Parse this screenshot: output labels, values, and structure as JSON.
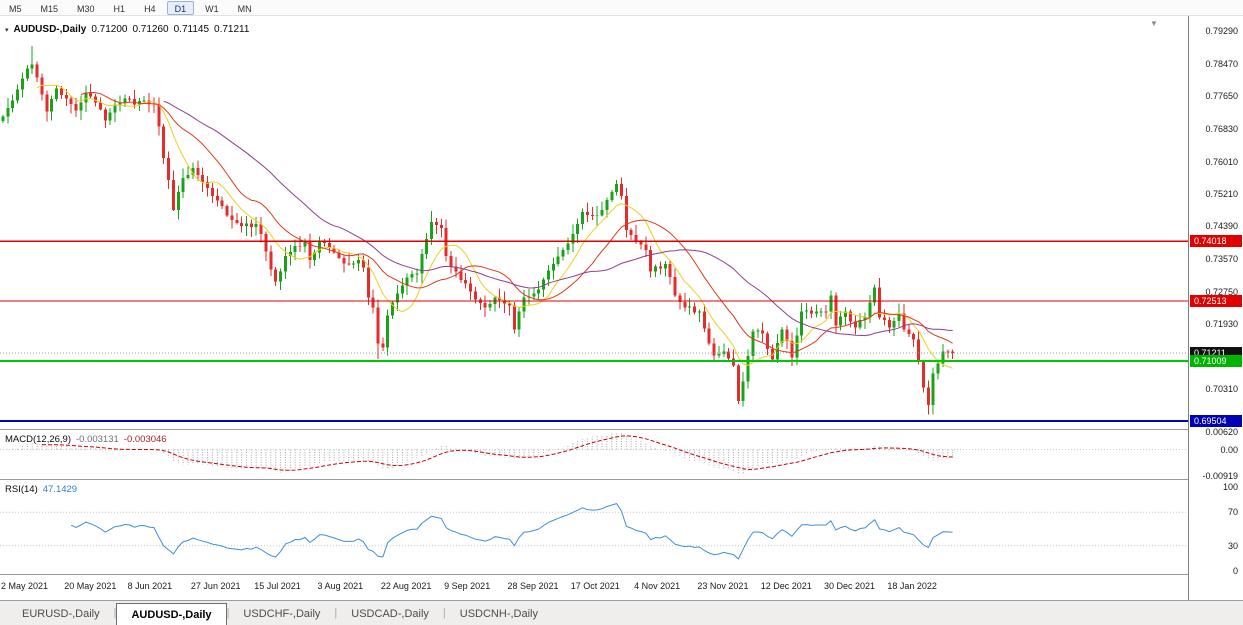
{
  "glyphs": {
    "dropdown": "▾",
    "shift_marker": "▼",
    "tab_separator": "|"
  },
  "toolbar": {
    "timeframes": [
      "M5",
      "M15",
      "M30",
      "H1",
      "H4",
      "D1",
      "W1",
      "MN"
    ],
    "active": "D1"
  },
  "chart": {
    "symbol_header": {
      "symbol": "AUDUSD-,Daily",
      "ohlc": [
        "0.71200",
        "0.71260",
        "0.71145",
        "0.71211"
      ]
    },
    "price_axis": {
      "ticks": [
        {
          "label": "0.79290",
          "value": 0.7929
        },
        {
          "label": "0.78470",
          "value": 0.7847
        },
        {
          "label": "0.77650",
          "value": 0.7765
        },
        {
          "label": "0.76830",
          "value": 0.7683
        },
        {
          "label": "0.76010",
          "value": 0.7601
        },
        {
          "label": "0.75210",
          "value": 0.7521
        },
        {
          "label": "0.74390",
          "value": 0.7439
        },
        {
          "label": "0.73570",
          "value": 0.7357
        },
        {
          "label": "0.72750",
          "value": 0.7275
        },
        {
          "label": "0.71930",
          "value": 0.7193
        },
        {
          "label": "0.70310",
          "value": 0.7031
        }
      ],
      "badges": [
        {
          "label": "0.74018",
          "value": 0.74018,
          "bg": "#e00000",
          "name": "resistance-level-badge"
        },
        {
          "label": "0.72513",
          "value": 0.72513,
          "bg": "#e00000",
          "name": "resistance-level-badge"
        },
        {
          "label": "0.71211",
          "value": 0.71211,
          "bg": "#111111",
          "name": "current-price-badge"
        },
        {
          "label": "0.71009",
          "value": 0.71009,
          "bg": "#00b400",
          "name": "support-level-badge"
        },
        {
          "label": "0.69504",
          "value": 0.69504,
          "bg": "#0000b4",
          "name": "support-level-badge"
        }
      ]
    }
  },
  "indicators": {
    "macd": {
      "label": "MACD(12,26,9)",
      "value": "-0.003131",
      "signal": "-0.003046",
      "ticks": [
        {
          "label": "0.00620",
          "value": 0.0062
        },
        {
          "label": "0.00",
          "value": 0.0
        },
        {
          "label": "-0.00919",
          "value": -0.00919
        }
      ]
    },
    "rsi": {
      "label": "RSI(14)",
      "value": "47.1429",
      "ticks": [
        {
          "label": "100",
          "value": 100
        },
        {
          "label": "70",
          "value": 70
        },
        {
          "label": "30",
          "value": 30
        },
        {
          "label": "0",
          "value": 0
        }
      ]
    }
  },
  "date_axis": {
    "labels": [
      "2 May 2021",
      "20 May 2021",
      "8 Jun 2021",
      "27 Jun 2021",
      "15 Jul 2021",
      "3 Aug 2021",
      "22 Aug 2021",
      "9 Sep 2021",
      "28 Sep 2021",
      "17 Oct 2021",
      "4 Nov 2021",
      "23 Nov 2021",
      "12 Dec 2021",
      "30 Dec 2021",
      "18 Jan 2022"
    ],
    "bars_per_label": 13
  },
  "tabs": [
    {
      "label": "EURUSD-,Daily",
      "active": false
    },
    {
      "label": "AUDUSD-,Daily",
      "active": true
    },
    {
      "label": "USDCHF-,Daily",
      "active": false
    },
    {
      "label": "USDCAD-,Daily",
      "active": false
    },
    {
      "label": "USDCNH-,Daily",
      "active": false
    }
  ],
  "colors": {
    "bull": "#18a318",
    "bear": "#e52b2b",
    "ma_fast": "#efcf1e",
    "ma_mid": "#e0391c",
    "ma_slow": "#8e3e8e",
    "macd_hist": "#a6a6a6",
    "macd_signal": "#cc0000",
    "rsi_line": "#3e8ede",
    "level_red": "#e00000",
    "level_green": "#00c800",
    "level_blue": "#0000b4",
    "separator": "#9a9a9a",
    "grid_dotted": "#c8c8c8",
    "current_price_line": "#9a9a9a"
  },
  "chart_data": [
    {
      "type": "candlestick",
      "title": "AUDUSD-,Daily",
      "bar_count": 196,
      "ylim": [
        0.69278,
        0.79667
      ],
      "current_close": 0.71211,
      "levels": [
        {
          "value": 0.74018,
          "color": "red"
        },
        {
          "value": 0.72513,
          "color": "red"
        },
        {
          "value": 0.71009,
          "color": "green"
        },
        {
          "value": 0.69504,
          "color": "blue"
        }
      ],
      "moving_averages": [
        {
          "period": 8,
          "color_key": "ma_fast"
        },
        {
          "period": 17,
          "color_key": "ma_mid"
        },
        {
          "period": 34,
          "color_key": "ma_slow"
        }
      ],
      "close_keyframes": [
        [
          0,
          0.7715
        ],
        [
          2,
          0.7755
        ],
        [
          4,
          0.781
        ],
        [
          5,
          0.7835
        ],
        [
          6,
          0.7845
        ],
        [
          8,
          0.777
        ],
        [
          9,
          0.7727
        ],
        [
          11,
          0.7785
        ],
        [
          13,
          0.776
        ],
        [
          15,
          0.773
        ],
        [
          17,
          0.7775
        ],
        [
          19,
          0.775
        ],
        [
          21,
          0.7705
        ],
        [
          23,
          0.7745
        ],
        [
          25,
          0.776
        ],
        [
          27,
          0.7745
        ],
        [
          29,
          0.7755
        ],
        [
          31,
          0.7745
        ],
        [
          32,
          0.769
        ],
        [
          33,
          0.761
        ],
        [
          34,
          0.7555
        ],
        [
          35,
          0.748
        ],
        [
          36,
          0.7525
        ],
        [
          37,
          0.756
        ],
        [
          39,
          0.7585
        ],
        [
          41,
          0.755
        ],
        [
          43,
          0.7515
        ],
        [
          45,
          0.749
        ],
        [
          47,
          0.7455
        ],
        [
          49,
          0.744
        ],
        [
          52,
          0.7445
        ],
        [
          53,
          0.742
        ],
        [
          55,
          0.733
        ],
        [
          56,
          0.73
        ],
        [
          58,
          0.7365
        ],
        [
          60,
          0.739
        ],
        [
          62,
          0.74
        ],
        [
          63,
          0.7355
        ],
        [
          65,
          0.74
        ],
        [
          67,
          0.7385
        ],
        [
          69,
          0.736
        ],
        [
          71,
          0.7345
        ],
        [
          73,
          0.7355
        ],
        [
          74,
          0.7335
        ],
        [
          75,
          0.726
        ],
        [
          76,
          0.7235
        ],
        [
          77,
          0.7145
        ],
        [
          78,
          0.7135
        ],
        [
          79,
          0.7215
        ],
        [
          81,
          0.727
        ],
        [
          83,
          0.731
        ],
        [
          85,
          0.732
        ],
        [
          86,
          0.737
        ],
        [
          88,
          0.745
        ],
        [
          90,
          0.7435
        ],
        [
          91,
          0.7365
        ],
        [
          93,
          0.7325
        ],
        [
          95,
          0.7295
        ],
        [
          97,
          0.7255
        ],
        [
          99,
          0.7235
        ],
        [
          101,
          0.726
        ],
        [
          103,
          0.7245
        ],
        [
          104,
          0.724
        ],
        [
          105,
          0.718
        ],
        [
          106,
          0.7225
        ],
        [
          107,
          0.726
        ],
        [
          110,
          0.728
        ],
        [
          113,
          0.7345
        ],
        [
          115,
          0.738
        ],
        [
          117,
          0.742
        ],
        [
          119,
          0.7475
        ],
        [
          121,
          0.7465
        ],
        [
          123,
          0.748
        ],
        [
          125,
          0.7525
        ],
        [
          126,
          0.7545
        ],
        [
          127,
          0.7515
        ],
        [
          128,
          0.743
        ],
        [
          130,
          0.74
        ],
        [
          132,
          0.738
        ],
        [
          133,
          0.7325
        ],
        [
          136,
          0.7345
        ],
        [
          138,
          0.7265
        ],
        [
          140,
          0.7235
        ],
        [
          143,
          0.7225
        ],
        [
          146,
          0.7115
        ],
        [
          148,
          0.7125
        ],
        [
          150,
          0.709
        ],
        [
          151,
          0.7
        ],
        [
          152,
          0.705
        ],
        [
          154,
          0.7175
        ],
        [
          156,
          0.717
        ],
        [
          158,
          0.7105
        ],
        [
          160,
          0.718
        ],
        [
          162,
          0.711
        ],
        [
          164,
          0.7225
        ],
        [
          167,
          0.7225
        ],
        [
          169,
          0.7225
        ],
        [
          170,
          0.7265
        ],
        [
          171,
          0.719
        ],
        [
          173,
          0.7225
        ],
        [
          175,
          0.7185
        ],
        [
          177,
          0.721
        ],
        [
          179,
          0.7285
        ],
        [
          180,
          0.721
        ],
        [
          182,
          0.7185
        ],
        [
          184,
          0.722
        ],
        [
          185,
          0.718
        ],
        [
          187,
          0.7155
        ],
        [
          188,
          0.71
        ],
        [
          189,
          0.7035
        ],
        [
          190,
          0.699
        ],
        [
          191,
          0.707
        ],
        [
          193,
          0.7125
        ],
        [
          195,
          0.71211
        ]
      ],
      "wick_extremes": [
        {
          "i": 6,
          "high": 0.7891
        },
        {
          "i": 35,
          "low": 0.7478
        },
        {
          "i": 56,
          "low": 0.7289
        },
        {
          "i": 77,
          "low": 0.7106
        },
        {
          "i": 88,
          "high": 0.7477
        },
        {
          "i": 105,
          "low": 0.717
        },
        {
          "i": 126,
          "high": 0.7555
        },
        {
          "i": 151,
          "low": 0.6993
        },
        {
          "i": 179,
          "high": 0.7293
        },
        {
          "i": 190,
          "low": 0.6967
        }
      ]
    },
    {
      "type": "macd",
      "params": [
        12,
        26,
        9
      ],
      "last_values": [
        -0.003131,
        -0.003046
      ],
      "ylim": [
        -0.0105,
        0.0068
      ],
      "y_ticks": [
        0.0062,
        0.0,
        -0.00919
      ]
    },
    {
      "type": "rsi",
      "period": 14,
      "last_value": 47.1429,
      "levels": [
        70,
        30
      ],
      "ylim": [
        -4.76,
        108.33
      ],
      "y_ticks": [
        100,
        70,
        30,
        0
      ]
    }
  ]
}
